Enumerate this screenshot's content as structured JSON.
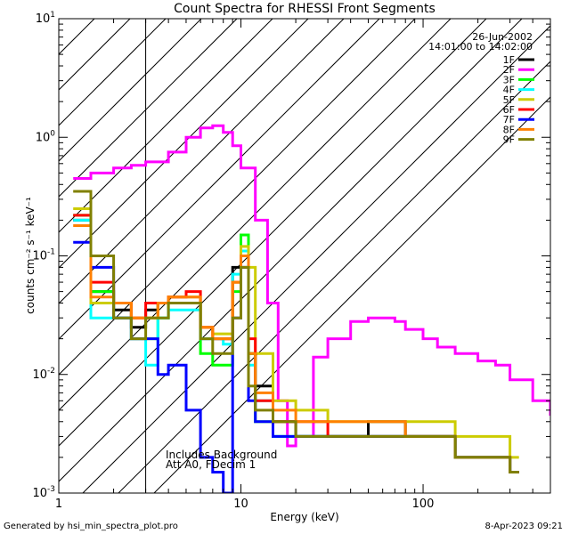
{
  "chart_data": {
    "type": "line",
    "title": "Count Spectra for RHESSI Front Segments",
    "xlabel": "Energy (keV)",
    "ylabel": "counts cm⁻² s⁻¹ keV⁻¹",
    "xscale": "log",
    "yscale": "log",
    "xlim": [
      1,
      500
    ],
    "ylim": [
      0.001,
      10
    ],
    "x_tick_labels": [
      {
        "value": 1,
        "label": "1"
      },
      {
        "value": 10,
        "label": "10"
      },
      {
        "value": 100,
        "label": "100"
      }
    ],
    "y_tick_labels": [
      {
        "value": 0.001,
        "base": "10",
        "exp": "-3"
      },
      {
        "value": 0.01,
        "base": "10",
        "exp": "-2"
      },
      {
        "value": 0.1,
        "base": "10",
        "exp": "-1"
      },
      {
        "value": 1,
        "base": "10",
        "exp": "0"
      },
      {
        "value": 10,
        "base": "10",
        "exp": "1"
      }
    ],
    "hatched_region": [
      1,
      3
    ],
    "date": "26-Jun-2002",
    "time_range": "14:01:00 to 14:02:00",
    "annotation_lines": [
      "Includes Background",
      "Att A0, FDecim 1"
    ],
    "legend_position": "top-right",
    "series": [
      {
        "name": "1F",
        "color": "#000000",
        "x": [
          1.2,
          1.5,
          2,
          2.5,
          3,
          3.5,
          4,
          5,
          6,
          7,
          8,
          9,
          10,
          11,
          12,
          15,
          20,
          30,
          50,
          80,
          150,
          300
        ],
        "values": [
          0.2,
          0.05,
          0.035,
          0.025,
          0.035,
          0.04,
          0.04,
          0.04,
          0.02,
          0.02,
          0.02,
          0.08,
          0.1,
          0.015,
          0.008,
          0.004,
          0.003,
          0.003,
          0.004,
          0.003,
          0.002,
          0.0015
        ]
      },
      {
        "name": "2F",
        "color": "#ff00ff",
        "x": [
          1.2,
          1.5,
          2,
          2.5,
          3,
          4,
          5,
          6,
          7,
          8,
          9,
          10,
          12,
          14,
          16,
          18,
          20,
          25,
          30,
          40,
          50,
          60,
          70,
          80,
          100,
          120,
          150,
          200,
          250,
          300,
          400,
          500
        ],
        "values": [
          0.45,
          0.5,
          0.55,
          0.58,
          0.62,
          0.75,
          1.0,
          1.2,
          1.25,
          1.1,
          0.85,
          0.55,
          0.2,
          0.04,
          0.006,
          0.0025,
          0.003,
          0.014,
          0.02,
          0.028,
          0.03,
          0.03,
          0.028,
          0.024,
          0.02,
          0.017,
          0.015,
          0.013,
          0.012,
          0.009,
          0.006,
          0.0045
        ]
      },
      {
        "name": "3F",
        "color": "#00ff00",
        "x": [
          1.2,
          1.5,
          2,
          2.5,
          3,
          3.5,
          4,
          5,
          6,
          7,
          8,
          9,
          10,
          11,
          12,
          15,
          20,
          30,
          50,
          80,
          150,
          300
        ],
        "values": [
          0.22,
          0.05,
          0.03,
          0.02,
          0.02,
          0.03,
          0.04,
          0.04,
          0.015,
          0.012,
          0.012,
          0.05,
          0.15,
          0.015,
          0.004,
          0.003,
          0.003,
          0.003,
          0.003,
          0.003,
          0.002,
          0.0015
        ]
      },
      {
        "name": "4F",
        "color": "#00ffff",
        "x": [
          1.2,
          1.5,
          2,
          2.5,
          3,
          3.5,
          4,
          5,
          6,
          7,
          8,
          9,
          10,
          11,
          12,
          15,
          20,
          30,
          50,
          80,
          150,
          300
        ],
        "values": [
          0.2,
          0.03,
          0.03,
          0.02,
          0.012,
          0.03,
          0.035,
          0.035,
          0.02,
          0.02,
          0.018,
          0.07,
          0.11,
          0.012,
          0.006,
          0.003,
          0.003,
          0.003,
          0.003,
          0.003,
          0.002,
          0.0015
        ]
      },
      {
        "name": "5F",
        "color": "#cccc00",
        "x": [
          1.2,
          1.5,
          2,
          2.5,
          3,
          3.5,
          4,
          5,
          6,
          7,
          8,
          9,
          10,
          11,
          12,
          15,
          20,
          30,
          50,
          80,
          150,
          300
        ],
        "values": [
          0.25,
          0.04,
          0.04,
          0.03,
          0.03,
          0.04,
          0.045,
          0.045,
          0.025,
          0.022,
          0.022,
          0.06,
          0.12,
          0.08,
          0.015,
          0.006,
          0.005,
          0.004,
          0.004,
          0.004,
          0.003,
          0.002
        ]
      },
      {
        "name": "6F",
        "color": "#ff0000",
        "x": [
          1.2,
          1.5,
          2,
          2.5,
          3,
          3.5,
          4,
          5,
          6,
          7,
          8,
          9,
          10,
          11,
          12,
          15,
          20,
          30,
          50,
          80,
          150,
          300
        ],
        "values": [
          0.22,
          0.06,
          0.04,
          0.03,
          0.04,
          0.04,
          0.045,
          0.05,
          0.025,
          0.02,
          0.02,
          0.06,
          0.1,
          0.02,
          0.006,
          0.004,
          0.004,
          0.003,
          0.003,
          0.003,
          0.002,
          0.0015
        ]
      },
      {
        "name": "7F",
        "color": "#0000ff",
        "x": [
          1.2,
          1.5,
          2,
          2.5,
          3,
          3.5,
          4,
          5,
          6,
          7,
          8,
          9,
          10,
          11,
          12,
          15,
          20,
          30,
          50,
          80,
          150,
          300
        ],
        "values": [
          0.13,
          0.08,
          0.03,
          0.02,
          0.02,
          0.01,
          0.012,
          0.005,
          0.002,
          0.0015,
          0.001,
          0.03,
          0.08,
          0.006,
          0.004,
          0.003,
          0.003,
          0.003,
          0.003,
          0.003,
          0.002,
          0.0015
        ]
      },
      {
        "name": "8F",
        "color": "#ff8000",
        "x": [
          1.2,
          1.5,
          2,
          2.5,
          3,
          3.5,
          4,
          5,
          6,
          7,
          8,
          9,
          10,
          11,
          12,
          15,
          20,
          30,
          50,
          80,
          150,
          300
        ],
        "values": [
          0.18,
          0.045,
          0.04,
          0.03,
          0.03,
          0.04,
          0.045,
          0.045,
          0.025,
          0.02,
          0.02,
          0.06,
          0.1,
          0.015,
          0.007,
          0.005,
          0.004,
          0.004,
          0.004,
          0.003,
          0.002,
          0.0015
        ]
      },
      {
        "name": "9F",
        "color": "#808000",
        "x": [
          1.2,
          1.5,
          2,
          2.5,
          3,
          3.5,
          4,
          5,
          6,
          7,
          8,
          9,
          10,
          11,
          12,
          15,
          20,
          30,
          50,
          80,
          150,
          300
        ],
        "values": [
          0.35,
          0.1,
          0.03,
          0.02,
          0.03,
          0.03,
          0.04,
          0.04,
          0.02,
          0.015,
          0.015,
          0.03,
          0.08,
          0.008,
          0.005,
          0.004,
          0.003,
          0.003,
          0.003,
          0.003,
          0.002,
          0.0015
        ]
      }
    ]
  },
  "footer": {
    "left": "Generated by hsi_min_spectra_plot.pro",
    "right": "8-Apr-2023 09:21"
  }
}
